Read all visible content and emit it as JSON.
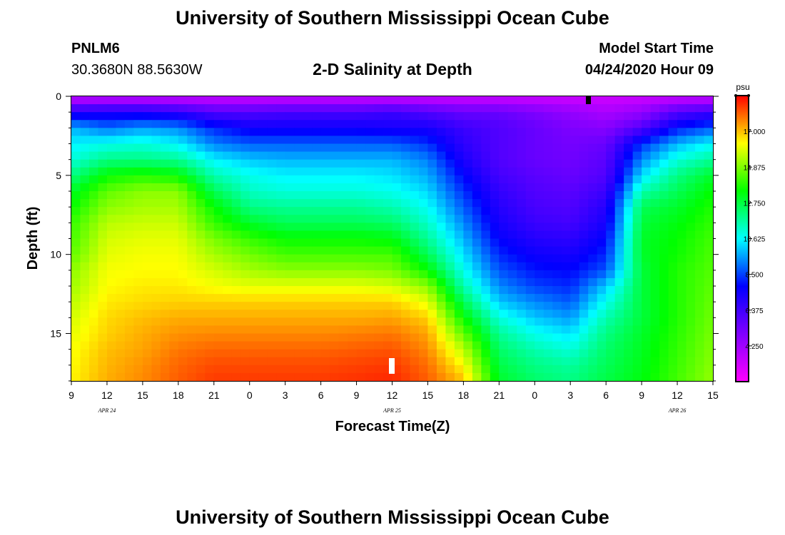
{
  "page": {
    "title_top": "University of Southern Mississippi Ocean Cube",
    "title_bottom": "University of Southern Mississippi Ocean Cube",
    "station": "PNLM6",
    "location": "30.3680N 88.5630W",
    "plot_title": "2-D Salinity at Depth",
    "model_start_label": "Model Start Time",
    "model_start_value": "04/24/2020 Hour 09"
  },
  "chart_data": {
    "type": "heatmap",
    "title": "2-D Salinity at Depth",
    "xlabel": "Forecast Time(Z)",
    "ylabel": "Depth (ft)",
    "x_tick_labels": [
      "9",
      "12",
      "15",
      "18",
      "21",
      "0",
      "3",
      "6",
      "9",
      "12",
      "15",
      "18",
      "21",
      "0",
      "3",
      "6",
      "9",
      "12",
      "15"
    ],
    "date_labels": [
      {
        "label": "APR 24",
        "hour_index": 3
      },
      {
        "label": "APR 25",
        "hour_index": 27
      },
      {
        "label": "APR 26",
        "hour_index": 51
      }
    ],
    "x_range_hours_from_start": [
      0,
      54
    ],
    "y_ticks": [
      0,
      5,
      10,
      15
    ],
    "ylim": [
      0,
      18
    ],
    "y_inverted": true,
    "colorbar": {
      "unit": "psu",
      "ticks": [
        4.25,
        6.375,
        8.5,
        10.625,
        12.75,
        14.875,
        17.0
      ],
      "tick_labels": [
        "4.250",
        "6.375",
        "8.500",
        "10.625",
        "12.750",
        "14.875",
        "17.000"
      ],
      "range": [
        2.125,
        19.125
      ],
      "colors": [
        "#ff00ff",
        "#8000ff",
        "#0000ff",
        "#00ffff",
        "#00ff00",
        "#ffff00",
        "#ff0000"
      ]
    },
    "grid_columns_hours": [
      0,
      3,
      6,
      9,
      12,
      15,
      18,
      21,
      24,
      27,
      30,
      33,
      36,
      39,
      42,
      45,
      48,
      51,
      54
    ],
    "grid_rows_depth_ft": [
      0,
      1,
      2,
      3,
      4,
      5,
      6,
      7,
      8,
      9,
      10,
      11,
      12,
      13,
      14,
      15,
      16,
      17,
      18
    ],
    "salinity_psu": [
      [
        3.2,
        3.2,
        3.2,
        3.2,
        3.2,
        3.2,
        3.2,
        3.2,
        3.2,
        3.2,
        3.2,
        3.2,
        3.2,
        3.2,
        3.2,
        3.2,
        3.2,
        3.2,
        3.2
      ],
      [
        7.0,
        7.2,
        7.2,
        6.8,
        6.0,
        6.0,
        6.2,
        6.2,
        6.2,
        6.5,
        6.0,
        5.5,
        5.5,
        5.0,
        4.5,
        4.0,
        4.5,
        6.0,
        6.5
      ],
      [
        9.8,
        9.0,
        9.5,
        9.3,
        8.2,
        7.5,
        7.5,
        7.5,
        7.5,
        7.3,
        7.3,
        6.5,
        6.0,
        5.5,
        5.0,
        4.8,
        6.0,
        8.0,
        8.8
      ],
      [
        10.5,
        10.8,
        11.0,
        10.5,
        9.2,
        8.8,
        8.8,
        8.8,
        8.8,
        8.8,
        8.3,
        6.8,
        6.0,
        5.5,
        5.2,
        5.5,
        8.3,
        9.8,
        10.6
      ],
      [
        11.0,
        12.0,
        12.0,
        11.8,
        10.5,
        10.0,
        9.8,
        9.8,
        9.8,
        9.8,
        9.2,
        7.2,
        6.0,
        5.5,
        5.3,
        5.8,
        9.3,
        11.0,
        11.8
      ],
      [
        12.0,
        13.5,
        13.8,
        13.5,
        11.5,
        10.8,
        10.5,
        10.5,
        10.5,
        10.3,
        9.7,
        7.8,
        6.3,
        5.8,
        5.5,
        6.0,
        10.3,
        12.0,
        13.0
      ],
      [
        13.0,
        14.5,
        15.0,
        15.0,
        12.5,
        11.3,
        11.0,
        11.0,
        11.0,
        10.8,
        10.2,
        8.3,
        6.7,
        6.0,
        5.8,
        6.5,
        11.5,
        12.5,
        13.5
      ],
      [
        13.5,
        15.0,
        15.3,
        15.3,
        13.5,
        12.0,
        11.8,
        11.8,
        11.8,
        11.5,
        10.7,
        8.8,
        7.0,
        6.2,
        6.0,
        7.0,
        12.5,
        13.0,
        13.8
      ],
      [
        14.0,
        15.5,
        15.7,
        15.7,
        14.0,
        13.0,
        12.5,
        12.5,
        12.5,
        12.3,
        11.2,
        9.3,
        7.3,
        6.5,
        6.3,
        7.3,
        12.8,
        13.3,
        14.0
      ],
      [
        14.2,
        15.8,
        16.0,
        16.0,
        14.8,
        14.0,
        13.5,
        13.5,
        13.5,
        13.3,
        11.8,
        9.8,
        7.7,
        7.0,
        6.8,
        7.8,
        13.0,
        13.5,
        14.2
      ],
      [
        14.5,
        16.0,
        16.2,
        16.2,
        15.3,
        14.7,
        14.2,
        14.2,
        14.2,
        14.2,
        12.5,
        10.3,
        8.2,
        7.5,
        7.3,
        8.2,
        13.0,
        13.6,
        14.3
      ],
      [
        15.0,
        16.2,
        16.3,
        16.3,
        15.8,
        15.3,
        15.0,
        15.0,
        15.0,
        14.8,
        13.5,
        10.8,
        8.7,
        8.0,
        7.8,
        8.7,
        12.8,
        13.8,
        14.4
      ],
      [
        15.2,
        16.3,
        16.5,
        16.5,
        16.2,
        16.0,
        16.0,
        16.0,
        16.0,
        15.8,
        15.0,
        11.5,
        9.3,
        8.5,
        8.2,
        10.0,
        12.8,
        13.8,
        14.5
      ],
      [
        15.5,
        16.5,
        16.7,
        16.8,
        16.8,
        16.8,
        16.8,
        16.8,
        16.8,
        16.8,
        16.0,
        12.5,
        10.0,
        9.3,
        8.8,
        10.8,
        12.8,
        13.8,
        14.6
      ],
      [
        15.8,
        16.7,
        17.0,
        17.2,
        17.2,
        17.2,
        17.2,
        17.2,
        17.2,
        17.3,
        16.8,
        13.5,
        11.0,
        10.0,
        9.5,
        11.5,
        12.8,
        13.8,
        14.7
      ],
      [
        16.0,
        16.8,
        17.2,
        17.5,
        17.6,
        17.6,
        17.6,
        17.6,
        17.7,
        17.8,
        17.3,
        14.5,
        11.8,
        10.8,
        10.3,
        12.0,
        13.0,
        13.9,
        14.8
      ],
      [
        16.2,
        17.0,
        17.3,
        17.8,
        18.0,
        18.0,
        18.0,
        18.0,
        18.1,
        18.2,
        17.6,
        15.5,
        12.3,
        11.5,
        11.0,
        12.3,
        13.1,
        14.0,
        14.9
      ],
      [
        16.3,
        17.1,
        17.5,
        18.0,
        18.3,
        18.3,
        18.3,
        18.3,
        18.4,
        18.5,
        17.9,
        16.3,
        12.7,
        12.0,
        11.7,
        12.5,
        13.2,
        14.1,
        15.0
      ],
      [
        16.4,
        17.2,
        17.6,
        18.1,
        18.5,
        18.5,
        18.5,
        18.5,
        18.6,
        18.7,
        18.1,
        17.0,
        13.0,
        12.3,
        12.0,
        12.7,
        13.3,
        14.2,
        15.1
      ]
    ]
  }
}
